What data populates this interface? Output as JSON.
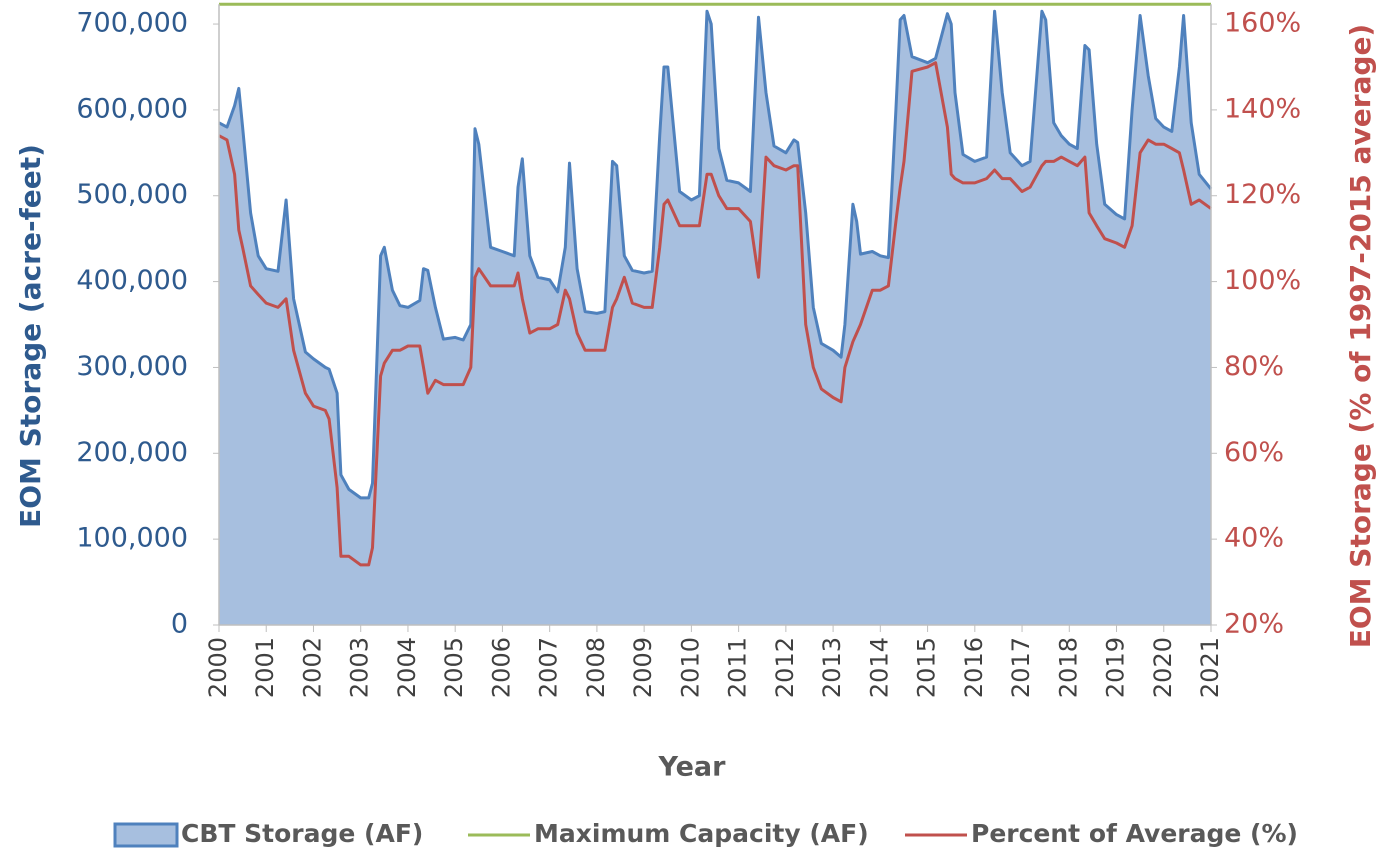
{
  "chart_data": {
    "type": "area-line",
    "x_label": "Year",
    "y_label": "EOM Storage (acre-feet)",
    "y2_label": "EOM Storage (% of 1997-2015 average)",
    "x": [
      2000,
      2000.17,
      2000.33,
      2000.42,
      2000.5,
      2000.67,
      2000.83,
      2001,
      2001.25,
      2001.42,
      2001.58,
      2001.83,
      2002,
      2002.25,
      2002.33,
      2002.5,
      2002.58,
      2002.75,
      2003,
      2003.17,
      2003.25,
      2003.42,
      2003.5,
      2003.67,
      2003.83,
      2004,
      2004.25,
      2004.33,
      2004.42,
      2004.58,
      2004.75,
      2005,
      2005.17,
      2005.33,
      2005.42,
      2005.5,
      2005.75,
      2006,
      2006.25,
      2006.33,
      2006.42,
      2006.58,
      2006.75,
      2007,
      2007.17,
      2007.33,
      2007.42,
      2007.58,
      2007.75,
      2008,
      2008.17,
      2008.33,
      2008.42,
      2008.58,
      2008.75,
      2009,
      2009.17,
      2009.33,
      2009.42,
      2009.5,
      2009.75,
      2010,
      2010.17,
      2010.33,
      2010.42,
      2010.58,
      2010.75,
      2011,
      2011.25,
      2011.42,
      2011.58,
      2011.75,
      2012,
      2012.17,
      2012.25,
      2012.42,
      2012.58,
      2012.75,
      2013,
      2013.17,
      2013.25,
      2013.42,
      2013.5,
      2013.58,
      2013.83,
      2014,
      2014.17,
      2014.33,
      2014.42,
      2014.5,
      2014.67,
      2015,
      2015.17,
      2015.42,
      2015.5,
      2015.58,
      2015.75,
      2016,
      2016.25,
      2016.42,
      2016.58,
      2016.75,
      2017,
      2017.17,
      2017.42,
      2017.5,
      2017.67,
      2017.83,
      2018,
      2018.17,
      2018.33,
      2018.42,
      2018.58,
      2018.75,
      2019,
      2019.17,
      2019.33,
      2019.5,
      2019.67,
      2019.83,
      2020,
      2020.17,
      2020.33,
      2020.42,
      2020.58,
      2020.75,
      2021
    ],
    "series": [
      {
        "name": "CBT Storage (AF)",
        "kind": "area",
        "color": "#4f81bd",
        "fill": "#a7bfdf",
        "values": [
          585000,
          580000,
          605000,
          625000,
          580000,
          480000,
          430000,
          415000,
          412000,
          495000,
          380000,
          318000,
          310000,
          300000,
          298000,
          270000,
          175000,
          158000,
          148000,
          148000,
          165000,
          430000,
          440000,
          390000,
          372000,
          370000,
          378000,
          415000,
          413000,
          370000,
          333000,
          335000,
          332000,
          350000,
          578000,
          560000,
          440000,
          435000,
          430000,
          510000,
          543000,
          430000,
          405000,
          402000,
          388000,
          440000,
          538000,
          415000,
          365000,
          363000,
          365000,
          540000,
          535000,
          430000,
          413000,
          410000,
          412000,
          570000,
          650000,
          650000,
          505000,
          495000,
          500000,
          715000,
          700000,
          555000,
          518000,
          515000,
          505000,
          708000,
          620000,
          558000,
          550000,
          565000,
          562000,
          480000,
          370000,
          328000,
          320000,
          312000,
          350000,
          490000,
          470000,
          432000,
          435000,
          430000,
          428000,
          600000,
          705000,
          710000,
          662000,
          655000,
          660000,
          712000,
          700000,
          620000,
          548000,
          540000,
          545000,
          715000,
          620000,
          550000,
          535000,
          540000,
          715000,
          705000,
          585000,
          570000,
          560000,
          555000,
          675000,
          670000,
          560000,
          490000,
          478000,
          473000,
          600000,
          710000,
          640000,
          590000,
          580000,
          575000,
          650000,
          710000,
          585000,
          525000,
          508000
        ]
      },
      {
        "name": "Maximum Capacity (AF)",
        "kind": "line",
        "color": "#9bbb59",
        "x": [
          2000,
          2021
        ],
        "values": [
          723000,
          723000
        ]
      },
      {
        "name": "Percent of Average (%)",
        "kind": "line",
        "color": "#c0504d",
        "axis": "y2",
        "values": [
          134,
          133,
          125,
          112,
          108,
          99,
          97,
          95,
          94,
          96,
          84,
          74,
          71,
          70,
          68,
          52,
          36,
          36,
          34,
          34,
          38,
          78,
          81,
          84,
          84,
          85,
          85,
          80,
          74,
          77,
          76,
          76,
          76,
          80,
          101,
          103,
          99,
          99,
          99,
          102,
          96,
          88,
          89,
          89,
          90,
          98,
          96,
          88,
          84,
          84,
          84,
          94,
          96,
          101,
          95,
          94,
          94,
          108,
          118,
          119,
          113,
          113,
          113,
          125,
          125,
          120,
          117,
          117,
          114,
          101,
          129,
          127,
          126,
          127,
          127,
          90,
          80,
          75,
          73,
          72,
          80,
          86,
          88,
          90,
          98,
          98,
          99,
          114,
          122,
          128,
          149,
          150,
          151,
          136,
          125,
          124,
          123,
          123,
          124,
          126,
          124,
          124,
          121,
          122,
          127,
          128,
          128,
          129,
          128,
          127,
          129,
          116,
          113,
          110,
          109,
          108,
          113,
          130,
          133,
          132,
          132,
          131,
          130,
          126,
          118,
          119,
          117
        ]
      }
    ],
    "xlim": [
      2000,
      2021
    ],
    "xticks": [
      2000,
      2001,
      2002,
      2003,
      2004,
      2005,
      2006,
      2007,
      2008,
      2009,
      2010,
      2011,
      2012,
      2013,
      2014,
      2015,
      2016,
      2017,
      2018,
      2019,
      2020,
      2021
    ],
    "ylim": [
      0,
      723000
    ],
    "yticks": [
      0,
      {
        "value": 100000,
        "label": "100,000"
      },
      {
        "value": 200000,
        "label": "200,000"
      },
      {
        "value": 300000,
        "label": "300,000"
      },
      {
        "value": 400000,
        "label": "400,000"
      },
      {
        "value": 500000,
        "label": "500,000"
      },
      {
        "value": 600000,
        "label": "600,000"
      },
      {
        "value": 700000,
        "label": "700,000"
      }
    ],
    "y2lim": [
      20,
      164.6
    ],
    "y2ticks": [
      {
        "value": 20,
        "label": "20%"
      },
      {
        "value": 40,
        "label": "40%"
      },
      {
        "value": 60,
        "label": "60%"
      },
      {
        "value": 80,
        "label": "80%"
      },
      {
        "value": 100,
        "label": "100%"
      },
      {
        "value": 120,
        "label": "120%"
      },
      {
        "value": 140,
        "label": "140%"
      },
      {
        "value": 160,
        "label": "160%"
      }
    ],
    "grid": false,
    "legend": "bottom"
  }
}
